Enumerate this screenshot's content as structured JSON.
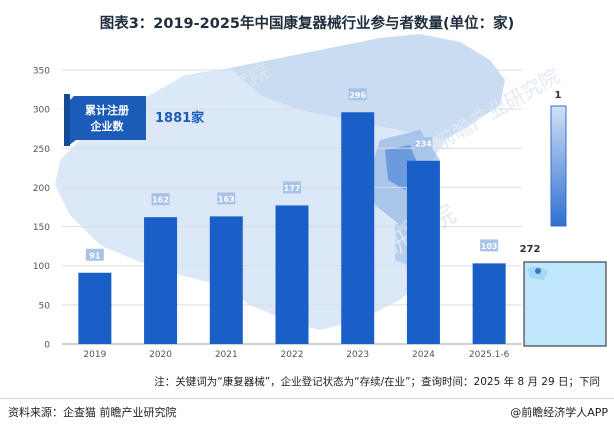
{
  "title": "图表3：2019-2025年中国康复器械行业参与者数量(单位：家)",
  "callout": {
    "label_line1": "累计注册",
    "label_line2": "企业数",
    "value": "1881家"
  },
  "legend": {
    "max_label": "1",
    "min_label": "272"
  },
  "note": "注：关键词为“康复器械”，企业登记状态为“存续/在业”；查询时间：2025 年 8 月 29 日；下同",
  "footer": {
    "source": "资料来源：企查猫 前瞻产业研究院",
    "brand": "@前瞻经济学人APP"
  },
  "watermark": "前瞻产业研究院",
  "colors": {
    "bar": "#1a5fc8",
    "label_bg": "#a9c3e8",
    "map": "#c9dcf2",
    "grid": "#d9dde3",
    "callout": "#1b5cb8"
  },
  "chart_data": {
    "type": "bar",
    "categories": [
      "2019",
      "2020",
      "2021",
      "2022",
      "2023",
      "2024",
      "2025.1-6"
    ],
    "values": [
      91,
      162,
      163,
      177,
      296,
      234,
      103
    ],
    "ylim": [
      0,
      350
    ],
    "yticks": [
      0,
      50,
      100,
      150,
      200,
      250,
      300,
      350
    ],
    "grid": true
  }
}
